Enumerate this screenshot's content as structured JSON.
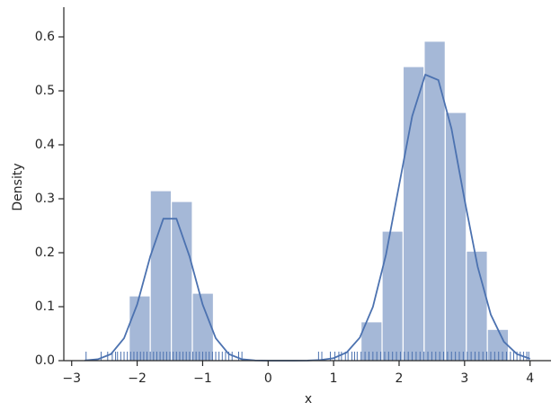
{
  "chart_data": {
    "type": "histogram",
    "xlabel": "x",
    "ylabel": "Density",
    "bins": [
      -2.122,
      -1.8,
      -1.478,
      -1.157,
      -0.835,
      -0.513,
      -0.191,
      0.131,
      0.452,
      0.774,
      1.096,
      1.418,
      1.74,
      2.061,
      2.383,
      2.705,
      3.027,
      3.348,
      3.67
    ],
    "values": [
      0.12,
      0.315,
      0.295,
      0.125,
      0,
      0,
      0,
      0,
      0,
      0,
      0,
      0.072,
      0.24,
      0.545,
      0.592,
      0.46,
      0.203,
      0.058
    ],
    "color": "#4c72b0",
    "kde": {
      "x": [
        -2.8,
        -2.6,
        -2.4,
        -2.2,
        -2.0,
        -1.8,
        -1.6,
        -1.4,
        -1.2,
        -1.0,
        -0.8,
        -0.6,
        -0.4,
        -0.2,
        0.0,
        0.2,
        0.4,
        0.6,
        0.8,
        1.0,
        1.2,
        1.4,
        1.6,
        1.8,
        2.0,
        2.2,
        2.4,
        2.6,
        2.8,
        3.0,
        3.2,
        3.4,
        3.6,
        3.8,
        4.0
      ],
      "values": [
        0.0004,
        0.0026,
        0.0121,
        0.0415,
        0.104,
        0.193,
        0.263,
        0.263,
        0.193,
        0.104,
        0.0415,
        0.0121,
        0.0026,
        0.0004,
        0.0,
        0.0,
        0.0,
        0.0002,
        0.0012,
        0.0046,
        0.0153,
        0.0426,
        0.0997,
        0.1966,
        0.325,
        0.453,
        0.53,
        0.52,
        0.43,
        0.298,
        0.174,
        0.0854,
        0.0351,
        0.0122,
        0.0035
      ]
    },
    "rug": [
      -2.78,
      -2.55,
      -2.45,
      -2.38,
      -2.33,
      -2.3,
      -2.25,
      -2.2,
      -2.15,
      -2.1,
      -2.05,
      -2.0,
      -1.95,
      -1.9,
      -1.85,
      -1.8,
      -1.75,
      -1.7,
      -1.65,
      -1.6,
      -1.55,
      -1.5,
      -1.45,
      -1.4,
      -1.35,
      -1.3,
      -1.25,
      -1.2,
      -1.15,
      -1.1,
      -1.05,
      -1.0,
      -0.95,
      -0.9,
      -0.85,
      -0.8,
      -0.75,
      -0.7,
      -0.65,
      -0.6,
      -0.55,
      -0.45,
      -0.4,
      0.77,
      0.82,
      0.95,
      1.02,
      1.08,
      1.12,
      1.18,
      1.22,
      1.28,
      1.32,
      1.36,
      1.42,
      1.48,
      1.54,
      1.6,
      1.66,
      1.72,
      1.78,
      1.84,
      1.9,
      1.96,
      2.02,
      2.08,
      2.14,
      2.2,
      2.26,
      2.32,
      2.38,
      2.44,
      2.5,
      2.56,
      2.62,
      2.68,
      2.74,
      2.8,
      2.86,
      2.92,
      2.98,
      3.04,
      3.1,
      3.16,
      3.22,
      3.28,
      3.34,
      3.4,
      3.46,
      3.52,
      3.58,
      3.64,
      3.7,
      3.75,
      3.8,
      3.85,
      3.9,
      3.95,
      3.98
    ],
    "xlim": [
      -3.12,
      4.32
    ],
    "ylim": [
      0,
      0.655
    ],
    "xticks": [
      {
        "value": -3,
        "label": "−3"
      },
      {
        "value": -2,
        "label": "−2"
      },
      {
        "value": -1,
        "label": "−1"
      },
      0,
      1,
      2,
      3,
      4
    ],
    "yticks": [
      {
        "value": 0,
        "label": "0.0"
      },
      0.1,
      0.2,
      0.3,
      0.4,
      0.5,
      0.6
    ]
  }
}
